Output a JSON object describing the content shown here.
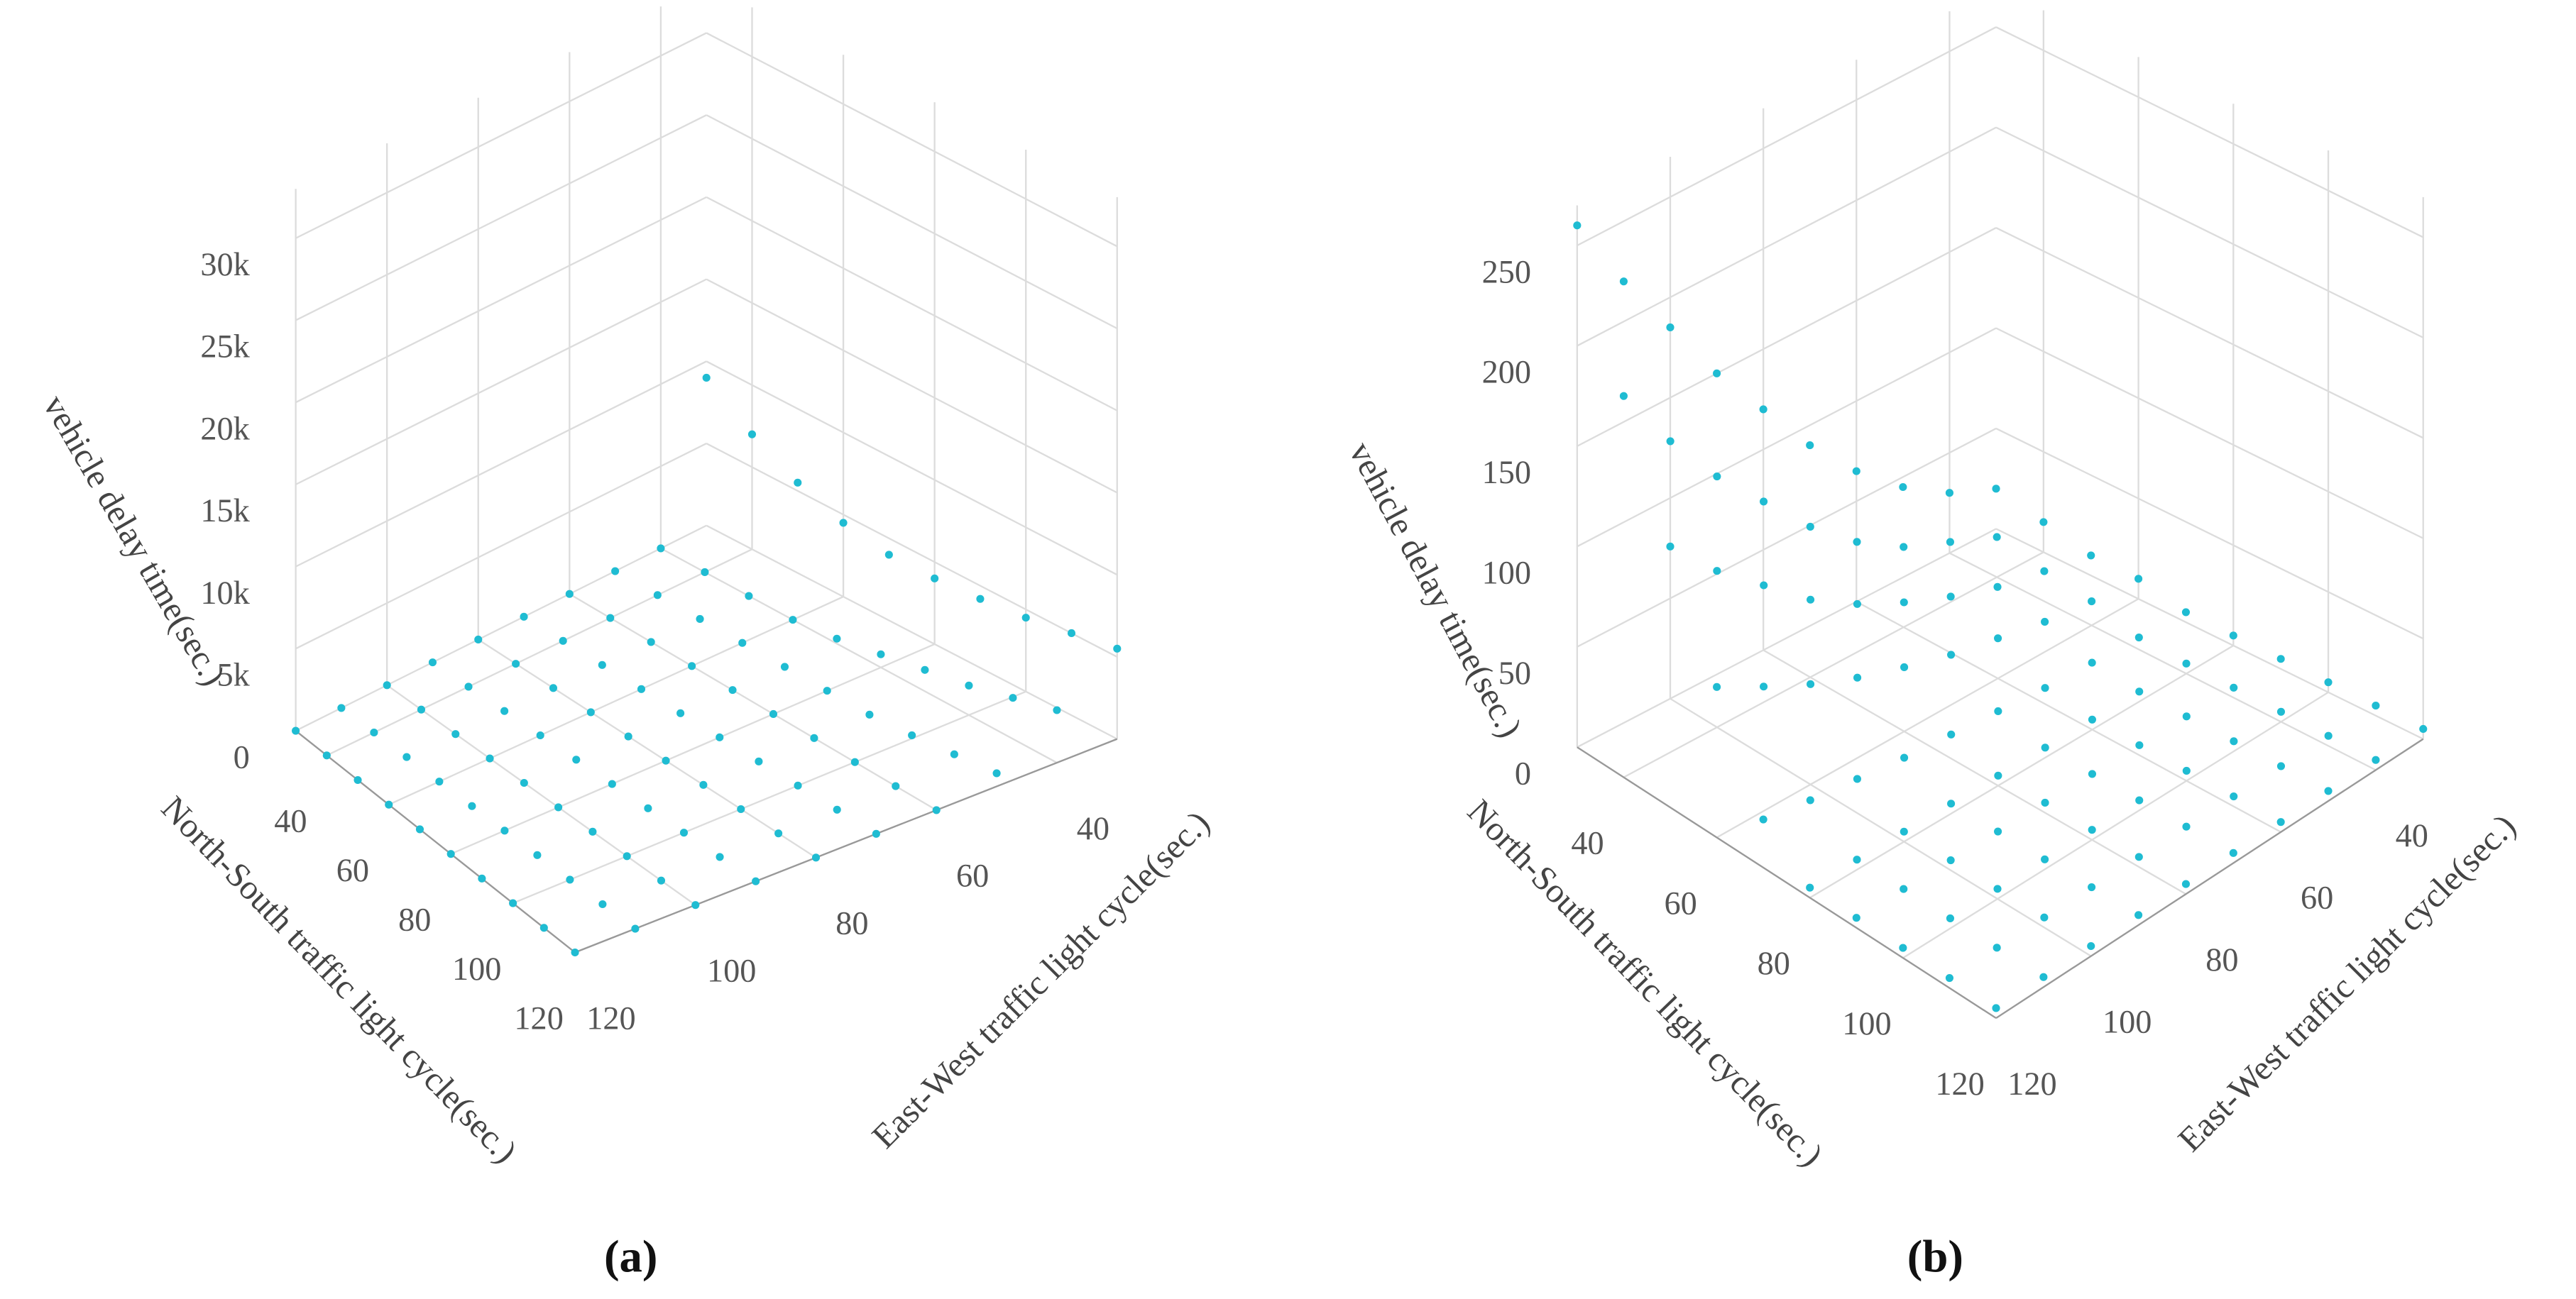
{
  "chart_data": [
    {
      "type": "scatter3d",
      "caption": "(a)",
      "x_label": "North-South traffic light cycle(sec.)",
      "y_label": "East-West traffic light cycle(sec.)",
      "z_label": "vehicle delay time(sec.)",
      "x": [
        30,
        40,
        50,
        60,
        70,
        80,
        90,
        100,
        110,
        120
      ],
      "y": [
        30,
        40,
        50,
        60,
        70,
        80,
        90,
        100,
        110,
        120
      ],
      "z": [
        [
          9000,
          0,
          0,
          0,
          0,
          0,
          0,
          0,
          0,
          0
        ],
        [
          7000,
          0,
          0,
          0,
          0,
          0,
          0,
          0,
          0,
          0
        ],
        [
          5500,
          0,
          0,
          0,
          0,
          0,
          0,
          0,
          0,
          0
        ],
        [
          4500,
          0,
          0,
          0,
          0,
          0,
          0,
          0,
          0,
          0
        ],
        [
          4000,
          300,
          0,
          0,
          0,
          0,
          0,
          0,
          0,
          0
        ],
        [
          4000,
          800,
          0,
          0,
          0,
          0,
          0,
          0,
          0,
          0
        ],
        [
          4200,
          1300,
          0,
          0,
          0,
          0,
          0,
          0,
          0,
          0
        ],
        [
          4500,
          1800,
          200,
          0,
          0,
          0,
          0,
          0,
          0,
          0
        ],
        [
          5000,
          2500,
          500,
          0,
          0,
          0,
          0,
          0,
          0,
          0
        ],
        [
          5500,
          3200,
          800,
          0,
          0,
          0,
          0,
          0,
          0,
          0
        ]
      ],
      "xlim": [
        30,
        120
      ],
      "ylim": [
        30,
        120
      ],
      "zlim": [
        0,
        33000
      ],
      "xticks": [
        40,
        60,
        80,
        100,
        120
      ],
      "yticks": [
        40,
        60,
        80,
        100,
        120
      ],
      "zticks": [
        0,
        {
          "value": 5000,
          "label": "5k"
        },
        {
          "value": 10000,
          "label": "10k"
        },
        {
          "value": 15000,
          "label": "15k"
        },
        {
          "value": 20000,
          "label": "20k"
        },
        {
          "value": 25000,
          "label": "25k"
        },
        {
          "value": 30000,
          "label": "30k"
        }
      ],
      "color": "#1fbcd2",
      "grid": true
    },
    {
      "type": "scatter3d",
      "caption": "(b)",
      "x_label": "North-South traffic light cycle(sec.)",
      "y_label": "East-West traffic light cycle(sec.)",
      "z_label": "vehicle delay time(sec.)",
      "x": [
        30,
        40,
        50,
        60,
        70,
        80,
        90,
        100,
        110,
        120
      ],
      "y": [
        30,
        40,
        50,
        60,
        70,
        80,
        90,
        100,
        110,
        120
      ],
      "z": [
        [
          20,
          30,
          45,
          65,
          90,
          120,
          150,
          185,
          220,
          260
        ],
        [
          15,
          20,
          30,
          40,
          55,
          75,
          100,
          125,
          155,
          190
        ],
        [
          10,
          15,
          20,
          28,
          38,
          50,
          65,
          85,
          105,
          130
        ],
        [
          10,
          12,
          15,
          20,
          25,
          32,
          40,
          50,
          62,
          75
        ],
        [
          5,
          6,
          7,
          8,
          10,
          12,
          14,
          17,
          20,
          24
        ],
        [
          5,
          5,
          5,
          5,
          5,
          5,
          5,
          5,
          5,
          5
        ],
        [
          5,
          5,
          5,
          5,
          5,
          5,
          5,
          5,
          5,
          5
        ],
        [
          5,
          5,
          5,
          5,
          5,
          5,
          5,
          5,
          5,
          5
        ],
        [
          5,
          5,
          5,
          5,
          5,
          5,
          5,
          5,
          5,
          5
        ],
        [
          5,
          5,
          5,
          5,
          5,
          5,
          5,
          5,
          5,
          5
        ]
      ],
      "xlim": [
        30,
        120
      ],
      "ylim": [
        30,
        120
      ],
      "zlim": [
        0,
        270
      ],
      "xticks": [
        40,
        60,
        80,
        100,
        120
      ],
      "yticks": [
        40,
        60,
        80,
        100,
        120
      ],
      "zticks": [
        0,
        50,
        100,
        150,
        200,
        250
      ],
      "color": "#1fbcd2",
      "grid": true
    }
  ]
}
